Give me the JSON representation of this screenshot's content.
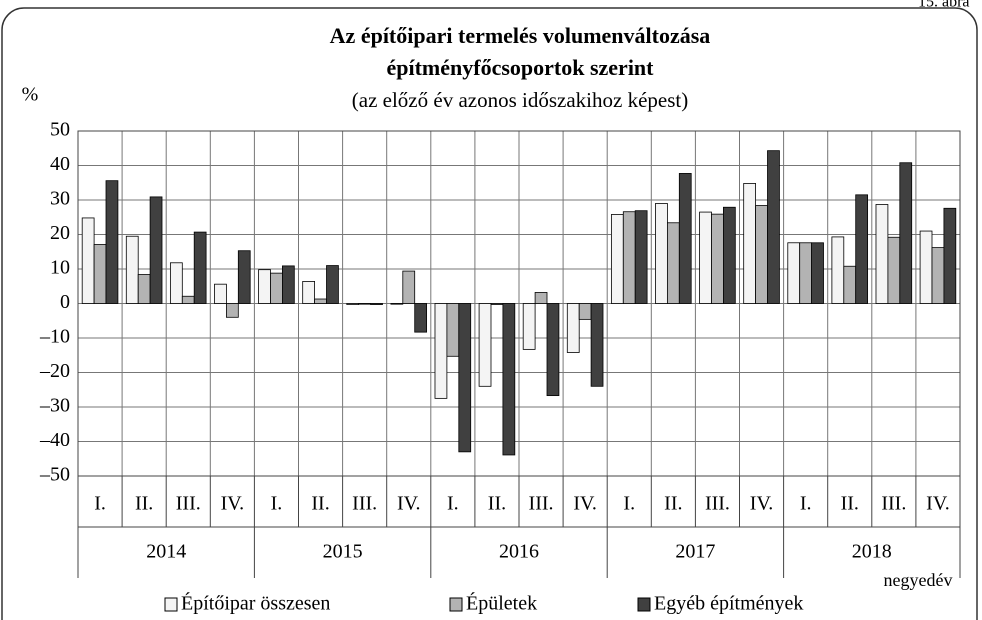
{
  "chart_data": {
    "type": "bar",
    "corner_label": "15. ábra",
    "title": "Az építőipari termelés volumenváltozása",
    "title_line2": "építményfőcsoportok szerint",
    "subtitle": "(az előző év azonos időszakihoz képest)",
    "y_label": "%",
    "x_label": "negyedév",
    "categories": [
      "I.",
      "II.",
      "III.",
      "IV.",
      "I.",
      "II.",
      "III.",
      "IV.",
      "I.",
      "II.",
      "III.",
      "IV.",
      "I.",
      "II.",
      "III.",
      "IV.",
      "I.",
      "II.",
      "III.",
      "IV."
    ],
    "years": [
      "2014",
      "2015",
      "2016",
      "2017",
      "2018"
    ],
    "series": [
      {
        "name": "Építőipar összesen",
        "color": "#f4f4f4",
        "values": [
          24.8,
          19.5,
          11.8,
          5.6,
          9.8,
          6.4,
          -0.3,
          -0.2,
          -27.5,
          -24.0,
          -13.3,
          -14.2,
          25.8,
          29.0,
          26.5,
          34.8,
          17.6,
          19.3,
          28.7,
          21.0
        ]
      },
      {
        "name": "Épületek",
        "color": "#b3b3b3",
        "values": [
          17.1,
          8.4,
          2.1,
          -4.0,
          8.8,
          1.3,
          -0.2,
          9.4,
          -15.3,
          -0.3,
          3.2,
          -4.6,
          26.6,
          23.4,
          25.9,
          28.4,
          17.6,
          10.8,
          19.2,
          16.2
        ]
      },
      {
        "name": "Egyéb építmények",
        "color": "#404040",
        "values": [
          35.6,
          30.9,
          20.7,
          15.3,
          10.9,
          11.0,
          -0.3,
          -8.3,
          -43.0,
          -43.9,
          -26.7,
          -24.0,
          26.9,
          37.7,
          27.9,
          44.3,
          17.6,
          31.5,
          40.8,
          27.6
        ]
      }
    ],
    "ylim": [
      -50,
      50
    ],
    "yticks": [
      50,
      40,
      30,
      20,
      10,
      0,
      {
        "value": -10,
        "label": "–10"
      },
      {
        "value": -20,
        "label": "–20"
      },
      {
        "value": -30,
        "label": "–30"
      },
      {
        "value": -40,
        "label": "–40"
      },
      {
        "value": -50,
        "label": "–50"
      }
    ],
    "grid": true
  }
}
